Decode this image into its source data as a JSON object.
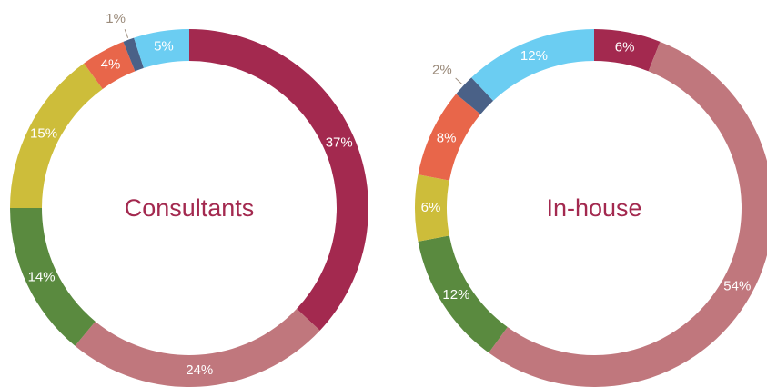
{
  "chart_data": [
    {
      "type": "pie",
      "title": "Consultants",
      "values": [
        37,
        24,
        14,
        15,
        4,
        1,
        5
      ],
      "value_labels": [
        "37%",
        "24%",
        "14%",
        "15%",
        "4%",
        "1%",
        "5%"
      ],
      "colors": [
        "#a3294f",
        "#c0777d",
        "#5a8a3f",
        "#cdbd3a",
        "#e8664a",
        "#4a6187",
        "#6bcdf2"
      ]
    },
    {
      "type": "pie",
      "title": "In-house",
      "values": [
        6,
        54,
        12,
        6,
        8,
        2,
        12
      ],
      "value_labels": [
        "6%",
        "54%",
        "12%",
        "6%",
        "8%",
        "2%",
        "12%"
      ],
      "colors": [
        "#a3294f",
        "#c0777d",
        "#5a8a3f",
        "#cdbd3a",
        "#e8664a",
        "#4a6187",
        "#6bcdf2"
      ]
    }
  ]
}
